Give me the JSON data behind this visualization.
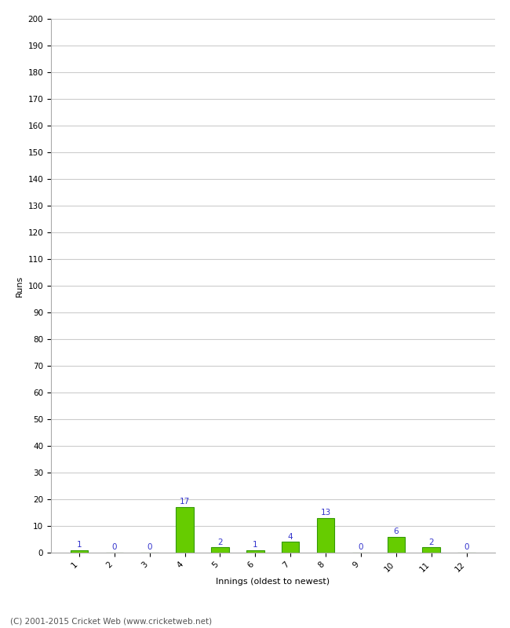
{
  "xlabel": "Innings (oldest to newest)",
  "ylabel": "Runs",
  "categories": [
    "1",
    "2",
    "3",
    "4",
    "5",
    "6",
    "7",
    "8",
    "9",
    "10",
    "11",
    "12"
  ],
  "values": [
    1,
    0,
    0,
    17,
    2,
    1,
    4,
    13,
    0,
    6,
    2,
    0
  ],
  "bar_color": "#66cc00",
  "bar_edge_color": "#339900",
  "label_color": "#3333cc",
  "ylim": [
    0,
    200
  ],
  "yticks": [
    0,
    10,
    20,
    30,
    40,
    50,
    60,
    70,
    80,
    90,
    100,
    110,
    120,
    130,
    140,
    150,
    160,
    170,
    180,
    190,
    200
  ],
  "background_color": "#ffffff",
  "grid_color": "#cccccc",
  "footer": "(C) 2001-2015 Cricket Web (www.cricketweb.net)",
  "label_fontsize": 7.5,
  "axis_label_fontsize": 8,
  "tick_fontsize": 7.5,
  "footer_fontsize": 7.5,
  "bar_width": 0.5
}
